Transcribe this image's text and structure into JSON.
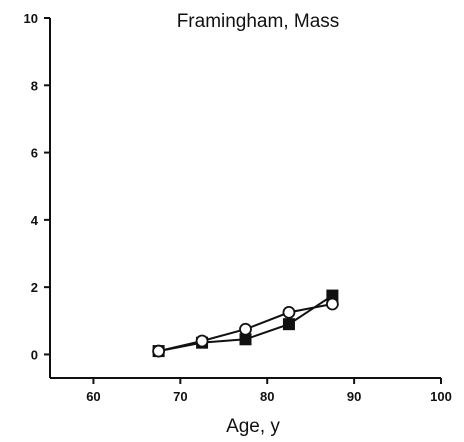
{
  "chart_data": {
    "type": "line",
    "title": "Framingham, Mass",
    "xlabel": "Age, y",
    "ylabel": "",
    "xlim": [
      55,
      100
    ],
    "ylim": [
      -0.7,
      10
    ],
    "xticks": [
      60,
      70,
      80,
      90,
      100
    ],
    "yticks": [
      0,
      2,
      4,
      6,
      8,
      10
    ],
    "grid": false,
    "series": [
      {
        "marker": "filled-square",
        "color": "#111111",
        "x": [
          67.5,
          72.5,
          77.5,
          82.5,
          87.5
        ],
        "y": [
          0.1,
          0.35,
          0.45,
          0.9,
          1.75
        ]
      },
      {
        "marker": "open-circle",
        "color": "#111111",
        "x": [
          67.5,
          72.5,
          77.5,
          82.5,
          87.5
        ],
        "y": [
          0.1,
          0.4,
          0.75,
          1.25,
          1.5
        ]
      }
    ]
  }
}
